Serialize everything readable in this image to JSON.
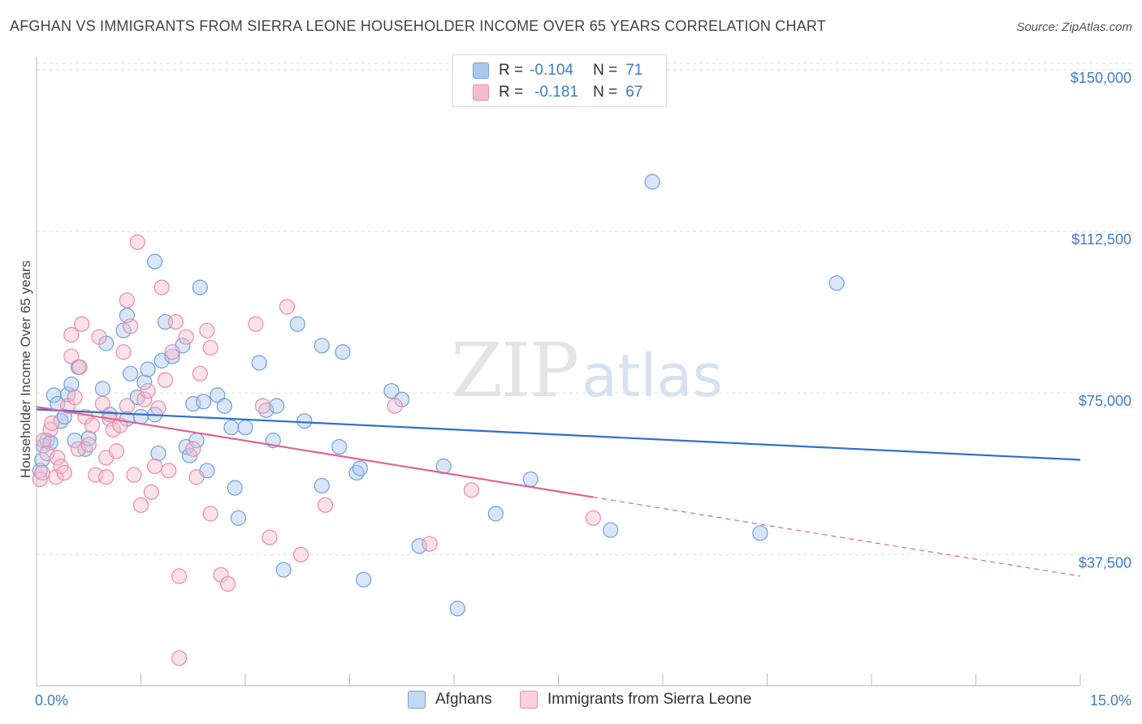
{
  "title": "AFGHAN VS IMMIGRANTS FROM SIERRA LEONE HOUSEHOLDER INCOME OVER 65 YEARS CORRELATION CHART",
  "source": "Source: ZipAtlas.com",
  "watermark": {
    "zip": "ZIP",
    "atlas": "atlas"
  },
  "legend": {
    "r_label": "R =",
    "n_label": "N =",
    "rows": [
      {
        "r": "-0.104",
        "n": "71",
        "color": "#a9c8ef",
        "stroke": "#6f9fd8"
      },
      {
        "r": "-0.181",
        "n": "67",
        "color": "#f6bccd",
        "stroke": "#e88aa8"
      }
    ]
  },
  "bottom_legend": [
    "Afghans",
    "Immigrants from Sierra Leone"
  ],
  "chart_data": {
    "type": "scatter",
    "xlabel": "",
    "ylabel": "Householder Income Over 65 years",
    "xlim": [
      0,
      15
    ],
    "ylim": [
      8000,
      153000
    ],
    "x_tick_labels": [
      {
        "value": 0,
        "label": "0.0%"
      },
      {
        "value": 15,
        "label": "15.0%"
      }
    ],
    "y_ticks": [
      {
        "value": 150000,
        "label": "$150,000"
      },
      {
        "value": 112500,
        "label": "$112,500"
      },
      {
        "value": 75000,
        "label": "$75,000"
      },
      {
        "value": 37500,
        "label": "$37,500"
      }
    ],
    "grid": "horizontal dashed",
    "legend_position": "top-center",
    "series": [
      {
        "name": "Afghans",
        "color": "#6f9fd8",
        "fill": "#a9c8ef",
        "trend": {
          "x0": 0,
          "y0": 71200,
          "x1": 15,
          "y1": 59500,
          "dashed_from": null
        },
        "points": [
          [
            0.05,
            57000
          ],
          [
            0.08,
            59500
          ],
          [
            0.1,
            62800
          ],
          [
            0.15,
            64000
          ],
          [
            0.2,
            63500
          ],
          [
            0.25,
            74500
          ],
          [
            0.3,
            72500
          ],
          [
            0.35,
            68500
          ],
          [
            0.4,
            69500
          ],
          [
            0.45,
            74700
          ],
          [
            0.5,
            77000
          ],
          [
            0.55,
            64000
          ],
          [
            0.6,
            81000
          ],
          [
            0.7,
            62000
          ],
          [
            0.75,
            64500
          ],
          [
            0.95,
            76000
          ],
          [
            1.0,
            86500
          ],
          [
            1.05,
            70000
          ],
          [
            1.25,
            89500
          ],
          [
            1.3,
            93000
          ],
          [
            1.3,
            69000
          ],
          [
            1.35,
            79500
          ],
          [
            1.45,
            74000
          ],
          [
            1.55,
            77500
          ],
          [
            1.6,
            80500
          ],
          [
            1.5,
            69500
          ],
          [
            1.85,
            91500
          ],
          [
            1.7,
            105500
          ],
          [
            1.8,
            82500
          ],
          [
            1.75,
            61000
          ],
          [
            1.95,
            83500
          ],
          [
            2.1,
            86000
          ],
          [
            2.15,
            62500
          ],
          [
            2.2,
            60500
          ],
          [
            2.3,
            64000
          ],
          [
            2.25,
            72500
          ],
          [
            2.35,
            99500
          ],
          [
            2.4,
            73000
          ],
          [
            2.45,
            57000
          ],
          [
            2.6,
            74500
          ],
          [
            2.7,
            72000
          ],
          [
            2.8,
            67000
          ],
          [
            2.85,
            53000
          ],
          [
            2.9,
            46000
          ],
          [
            3.0,
            67000
          ],
          [
            3.2,
            82000
          ],
          [
            3.3,
            71000
          ],
          [
            3.4,
            64000
          ],
          [
            3.45,
            72000
          ],
          [
            3.55,
            34000
          ],
          [
            3.75,
            91000
          ],
          [
            3.85,
            68500
          ],
          [
            4.1,
            86000
          ],
          [
            4.1,
            53500
          ],
          [
            4.35,
            62500
          ],
          [
            4.4,
            84500
          ],
          [
            4.6,
            56500
          ],
          [
            4.65,
            57500
          ],
          [
            4.7,
            31700
          ],
          [
            5.1,
            75500
          ],
          [
            5.25,
            73500
          ],
          [
            5.5,
            39500
          ],
          [
            5.85,
            58000
          ],
          [
            6.05,
            25000
          ],
          [
            6.6,
            47000
          ],
          [
            7.1,
            55000
          ],
          [
            8.25,
            43200
          ],
          [
            8.85,
            124000
          ],
          [
            10.4,
            42500
          ],
          [
            11.5,
            100500
          ],
          [
            1.7,
            70000
          ]
        ]
      },
      {
        "name": "Immigrants from Sierra Leone",
        "color": "#e88aa8",
        "fill": "#f6bccd",
        "trend": {
          "x0": 0,
          "y0": 71800,
          "x1": 15,
          "y1": 32500,
          "dashed_from": 8.0
        },
        "points": [
          [
            0.05,
            55000
          ],
          [
            0.08,
            56500
          ],
          [
            0.1,
            64000
          ],
          [
            0.15,
            61000
          ],
          [
            0.2,
            66500
          ],
          [
            0.22,
            68000
          ],
          [
            0.28,
            55500
          ],
          [
            0.3,
            60000
          ],
          [
            0.35,
            58000
          ],
          [
            0.4,
            56500
          ],
          [
            0.45,
            72000
          ],
          [
            0.5,
            83500
          ],
          [
            0.5,
            88500
          ],
          [
            0.55,
            74000
          ],
          [
            0.6,
            62000
          ],
          [
            0.62,
            81000
          ],
          [
            0.65,
            91000
          ],
          [
            0.7,
            69500
          ],
          [
            0.75,
            63000
          ],
          [
            0.8,
            67500
          ],
          [
            0.85,
            56000
          ],
          [
            0.9,
            88000
          ],
          [
            0.95,
            72500
          ],
          [
            1.0,
            55500
          ],
          [
            1.0,
            60000
          ],
          [
            1.05,
            69000
          ],
          [
            1.1,
            66500
          ],
          [
            1.15,
            61500
          ],
          [
            1.2,
            67500
          ],
          [
            1.25,
            84500
          ],
          [
            1.3,
            72000
          ],
          [
            1.3,
            96500
          ],
          [
            1.35,
            90500
          ],
          [
            1.4,
            56000
          ],
          [
            1.45,
            110000
          ],
          [
            1.5,
            49000
          ],
          [
            1.55,
            73500
          ],
          [
            1.6,
            75500
          ],
          [
            1.65,
            52000
          ],
          [
            1.7,
            58000
          ],
          [
            1.75,
            71500
          ],
          [
            1.85,
            78000
          ],
          [
            1.8,
            99500
          ],
          [
            1.9,
            57000
          ],
          [
            1.95,
            84500
          ],
          [
            2.0,
            91500
          ],
          [
            2.05,
            32500
          ],
          [
            2.15,
            88000
          ],
          [
            2.25,
            62000
          ],
          [
            2.3,
            55500
          ],
          [
            2.35,
            79500
          ],
          [
            2.45,
            89500
          ],
          [
            2.5,
            47000
          ],
          [
            2.5,
            85500
          ],
          [
            2.65,
            32800
          ],
          [
            2.75,
            30700
          ],
          [
            3.15,
            91000
          ],
          [
            3.25,
            72000
          ],
          [
            3.35,
            41500
          ],
          [
            3.6,
            95000
          ],
          [
            3.8,
            37500
          ],
          [
            4.15,
            49000
          ],
          [
            5.15,
            72000
          ],
          [
            5.65,
            40000
          ],
          [
            6.25,
            52500
          ],
          [
            8.0,
            46000
          ],
          [
            2.05,
            13500
          ]
        ]
      }
    ]
  }
}
